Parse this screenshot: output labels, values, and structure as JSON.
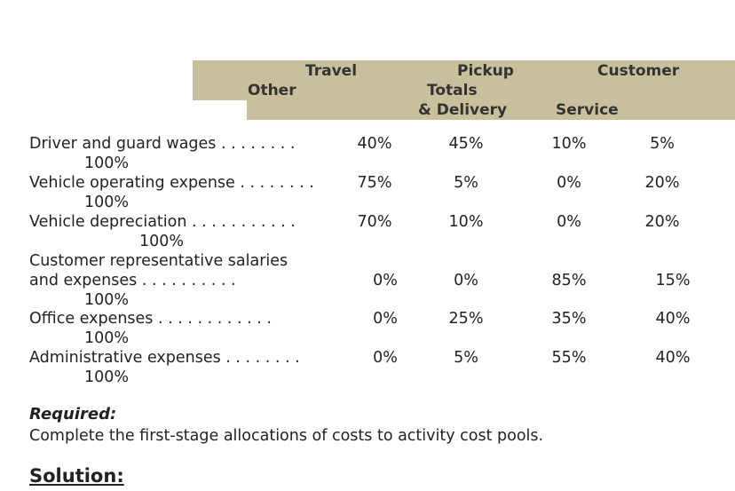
{
  "header": {
    "travel": "Travel",
    "other": "Other",
    "pickup": "Pickup",
    "totals": "Totals",
    "delivery": "& Delivery",
    "customer": "Customer",
    "service": "Service"
  },
  "rows": [
    {
      "label": "Driver and guard wages . . . . . . . .",
      "total": "100%",
      "values": [
        "40%",
        "45%",
        "10%",
        "5%"
      ]
    },
    {
      "label": "Vehicle operating expense . . . . . . . .",
      "total": "100%",
      "values": [
        "75%",
        "5%",
        "0%",
        "20%"
      ]
    },
    {
      "label": "Vehicle depreciation . . . . . . . . . . .",
      "total": "100%",
      "values": [
        "70%",
        "10%",
        "0%",
        "20%"
      ]
    },
    {
      "label": "Customer representative salaries",
      "label2": "and expenses . . . . . . . . . .",
      "total": "100%",
      "values": [
        "0%",
        "0%",
        "85%",
        "15%"
      ]
    },
    {
      "label": "Office expenses . . . . . . . . . . . .",
      "total": "100%",
      "values": [
        "0%",
        "25%",
        "35%",
        "40%"
      ]
    },
    {
      "label": "Administrative expenses . . . . . . . .",
      "total": "100%",
      "values": [
        "0%",
        "5%",
        "55%",
        "40%"
      ]
    }
  ],
  "required_label": "Required:",
  "required_text": "Complete the first-stage allocations of costs to activity cost pools.",
  "solution_label": "Solution:"
}
